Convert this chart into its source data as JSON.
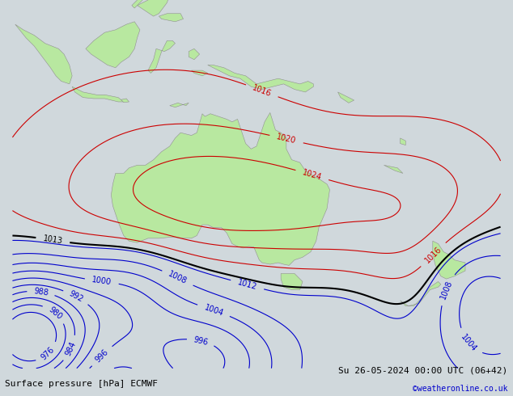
{
  "title_left": "Surface pressure [hPa] ECMWF",
  "title_right": "Su 26-05-2024 00:00 UTC (06+42)",
  "credit": "©weatheronline.co.uk",
  "fig_width": 6.34,
  "fig_height": 4.9,
  "dpi": 100,
  "xlim": [
    95,
    185
  ],
  "ylim": [
    -58,
    10
  ],
  "ocean_color": "#d0d8dc",
  "land_color": "#b8e8a0",
  "land_edge_color": "#909090",
  "isobar_red_color": "#cc0000",
  "isobar_blue_color": "#0000cc",
  "isobar_black_color": "#000000",
  "label_fontsize": 7,
  "bottom_fontsize": 8,
  "credit_fontsize": 7,
  "credit_color": "#0000cc"
}
